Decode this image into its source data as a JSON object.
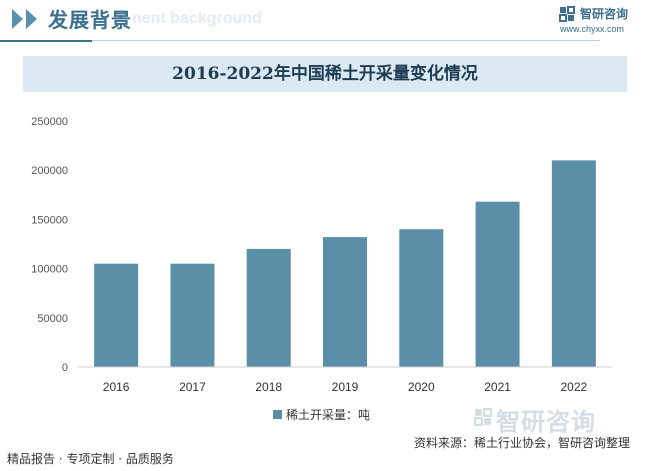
{
  "header": {
    "section_title": "发展背景",
    "section_ghost": "nent background",
    "brand_name": "智研咨询",
    "brand_url": "www.chyxx.com",
    "watermark_text": "智研咨询"
  },
  "footer": {
    "left": "精品报告 · 专项定制 · 品质服务",
    "right": "资料来源：稀土行业协会，智研咨询整理"
  },
  "colors": {
    "bar": "#5b8fa8",
    "accent": "#3d6f8f",
    "title_band": "#dbe9f2"
  },
  "chart_data": {
    "type": "bar",
    "title": "2016-2022年中国稀土开采量变化情况",
    "categories": [
      "2016",
      "2017",
      "2018",
      "2019",
      "2020",
      "2021",
      "2022"
    ],
    "series": [
      {
        "name": "稀土开采量：吨",
        "values": [
          105000,
          105000,
          120000,
          132000,
          140000,
          168000,
          210000
        ]
      }
    ],
    "yticks": [
      "0",
      "50000",
      "100000",
      "150000",
      "200000",
      "250000"
    ],
    "ylim": [
      0,
      250000
    ],
    "xlabel": "",
    "ylabel": "",
    "grid": false,
    "legend": "bottom"
  }
}
